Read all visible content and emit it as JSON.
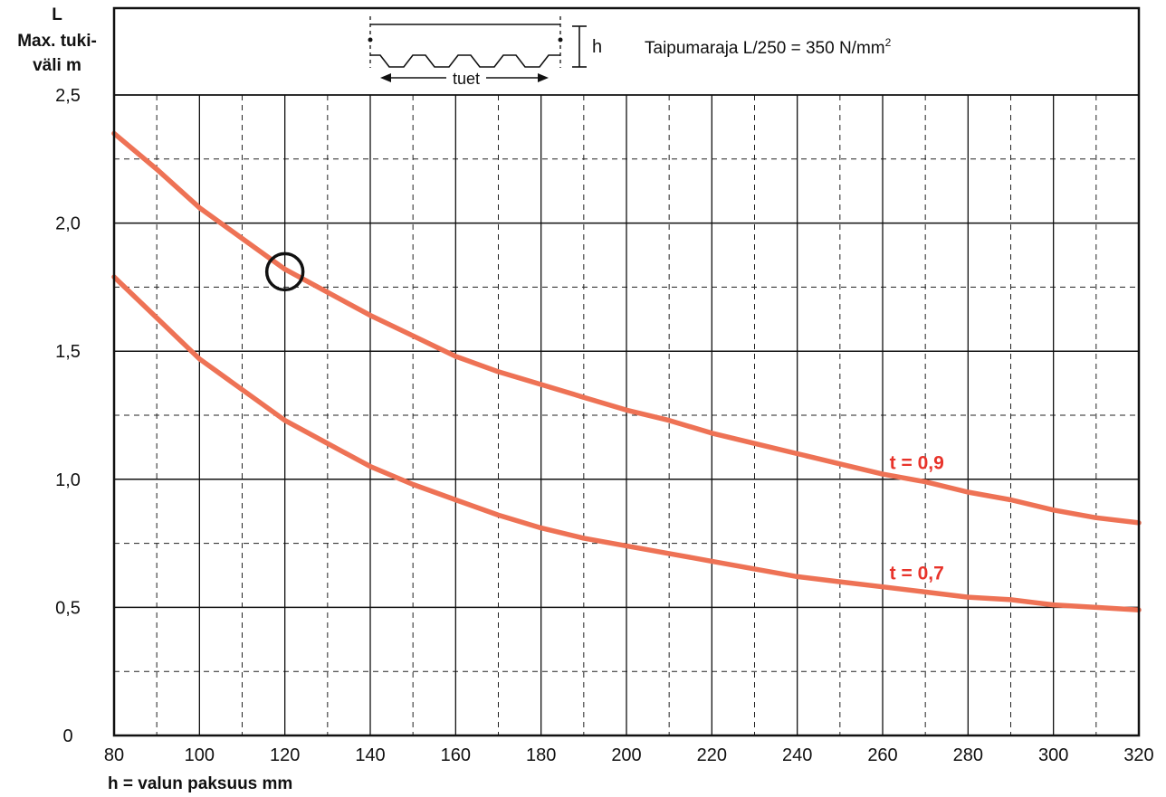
{
  "chart_data": {
    "type": "line",
    "ylabel": {
      "line1": "L",
      "line2": "Max. tuki-",
      "line3": "väli m"
    },
    "xlabel": "h = valun paksuus mm",
    "annotation": {
      "text": "Taipumaraja L/250 = 350 N/mm",
      "superscript": "2"
    },
    "diagram": {
      "height_label": "h",
      "span_label": "tuet"
    },
    "xlim": [
      80,
      320
    ],
    "ylim": [
      0,
      2.5
    ],
    "x_ticks": [
      "80",
      "100",
      "120",
      "140",
      "160",
      "180",
      "200",
      "220",
      "240",
      "260",
      "280",
      "300",
      "320"
    ],
    "y_ticks": [
      {
        "value": 0,
        "label": "0"
      },
      {
        "value": 0.5,
        "label": "0,5"
      },
      {
        "value": 1.0,
        "label": "1,0"
      },
      {
        "value": 1.5,
        "label": "1,5"
      },
      {
        "value": 2.0,
        "label": "2,0"
      },
      {
        "value": 2.5,
        "label": "2,5"
      }
    ],
    "grid": {
      "major": true,
      "minor_dashed": true
    },
    "series": [
      {
        "name": "t = 0,9",
        "color": "#ee7255",
        "label_color": "#e8332a",
        "x": [
          80,
          90,
          100,
          110,
          120,
          130,
          140,
          150,
          160,
          170,
          180,
          190,
          200,
          210,
          220,
          230,
          240,
          250,
          260,
          270,
          280,
          290,
          300,
          310,
          320
        ],
        "y": [
          2.35,
          2.21,
          2.06,
          1.94,
          1.82,
          1.73,
          1.64,
          1.56,
          1.48,
          1.42,
          1.37,
          1.32,
          1.27,
          1.23,
          1.18,
          1.14,
          1.1,
          1.06,
          1.02,
          0.99,
          0.95,
          0.92,
          0.88,
          0.85,
          0.83
        ]
      },
      {
        "name": "t = 0,7",
        "color": "#ee7255",
        "label_color": "#e8332a",
        "x": [
          80,
          90,
          100,
          110,
          120,
          130,
          140,
          150,
          160,
          170,
          180,
          190,
          200,
          210,
          220,
          230,
          240,
          250,
          260,
          270,
          280,
          290,
          300,
          310,
          320
        ],
        "y": [
          1.79,
          1.63,
          1.47,
          1.35,
          1.23,
          1.14,
          1.05,
          0.98,
          0.92,
          0.86,
          0.81,
          0.77,
          0.74,
          0.71,
          0.68,
          0.65,
          0.62,
          0.6,
          0.58,
          0.56,
          0.54,
          0.53,
          0.51,
          0.5,
          0.49
        ]
      }
    ],
    "highlight": {
      "x": 120,
      "y": 1.81,
      "shape": "circle"
    }
  }
}
